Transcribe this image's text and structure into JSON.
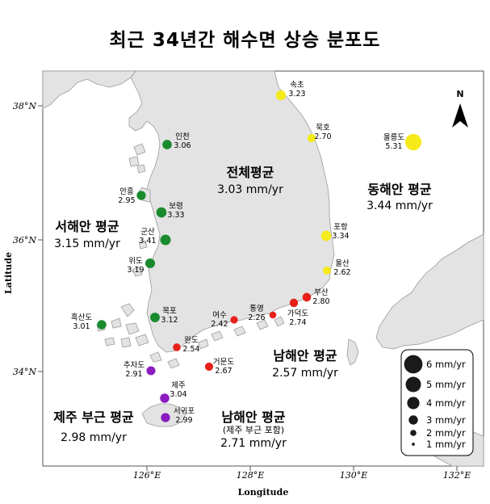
{
  "title": "최근 34년간 해수면 상승 분포도",
  "axes": {
    "xlabel": "Longitude",
    "ylabel": "Latitude",
    "xticks": [
      "126°E",
      "128°E",
      "130°E",
      "132°E"
    ],
    "yticks": [
      "38°N",
      "36°N",
      "34°N"
    ]
  },
  "north_label": "N",
  "colors": {
    "land": "#e3e3e3",
    "sea": "#ffffff",
    "coast": "#9a9a9a",
    "west": "#1a8a2e",
    "east": "#f5ea1a",
    "south": "#e8201a",
    "jeju": "#8a1cc0"
  },
  "stations": [
    {
      "name": "속초",
      "value": "3.23",
      "rate": 3.23,
      "group": "east"
    },
    {
      "name": "묵호",
      "value": "2.70",
      "rate": 2.7,
      "group": "east"
    },
    {
      "name": "울릉도",
      "value": "5.31",
      "rate": 5.31,
      "group": "east"
    },
    {
      "name": "포항",
      "value": "3.34",
      "rate": 3.34,
      "group": "east"
    },
    {
      "name": "울산",
      "value": "2.62",
      "rate": 2.62,
      "group": "east"
    },
    {
      "name": "인천",
      "value": "3.06",
      "rate": 3.06,
      "group": "west"
    },
    {
      "name": "안흥",
      "value": "2.95",
      "rate": 2.95,
      "group": "west"
    },
    {
      "name": "보령",
      "value": "3.33",
      "rate": 3.33,
      "group": "west"
    },
    {
      "name": "군산",
      "value": "3.41",
      "rate": 3.41,
      "group": "west"
    },
    {
      "name": "위도",
      "value": "3.19",
      "rate": 3.19,
      "group": "west"
    },
    {
      "name": "목포",
      "value": "3.12",
      "rate": 3.12,
      "group": "west"
    },
    {
      "name": "흑산도",
      "value": "3.01",
      "rate": 3.01,
      "group": "west"
    },
    {
      "name": "부산",
      "value": "2.80",
      "rate": 2.8,
      "group": "south"
    },
    {
      "name": "가덕도",
      "value": "2.74",
      "rate": 2.74,
      "group": "south"
    },
    {
      "name": "통영",
      "value": "2.26",
      "rate": 2.26,
      "group": "south"
    },
    {
      "name": "여수",
      "value": "2.42",
      "rate": 2.42,
      "group": "south"
    },
    {
      "name": "완도",
      "value": "2.54",
      "rate": 2.54,
      "group": "south"
    },
    {
      "name": "거문도",
      "value": "2.67",
      "rate": 2.67,
      "group": "south"
    },
    {
      "name": "추자도",
      "value": "2.91",
      "rate": 2.91,
      "group": "jeju"
    },
    {
      "name": "제주",
      "value": "3.04",
      "rate": 3.04,
      "group": "jeju"
    },
    {
      "name": "서귀포",
      "value": "2.99",
      "rate": 2.99,
      "group": "jeju"
    }
  ],
  "averages": {
    "total": {
      "title": "전체평균",
      "value": "3.03 mm/yr"
    },
    "west": {
      "title": "서해안 평균",
      "value": "3.15 mm/yr"
    },
    "east": {
      "title": "동해안 평균",
      "value": "3.44 mm/yr"
    },
    "south": {
      "title": "남해안 평균",
      "value": "2.57 mm/yr"
    },
    "south_jeju": {
      "title": "남해안 평균",
      "subtitle": "(제주 부근 포함)",
      "value": "2.71 mm/yr"
    },
    "jeju": {
      "title": "제주 부근 평균",
      "value": "2.98 mm/yr"
    }
  },
  "legend": {
    "items": [
      {
        "label": "6 mm/yr",
        "rate": 6
      },
      {
        "label": "5 mm/yr",
        "rate": 5
      },
      {
        "label": "4 mm/yr",
        "rate": 4
      },
      {
        "label": "3 mm/yr",
        "rate": 3
      },
      {
        "label": "2 mm/yr",
        "rate": 2
      },
      {
        "label": "1 mm/yr",
        "rate": 1
      }
    ]
  }
}
